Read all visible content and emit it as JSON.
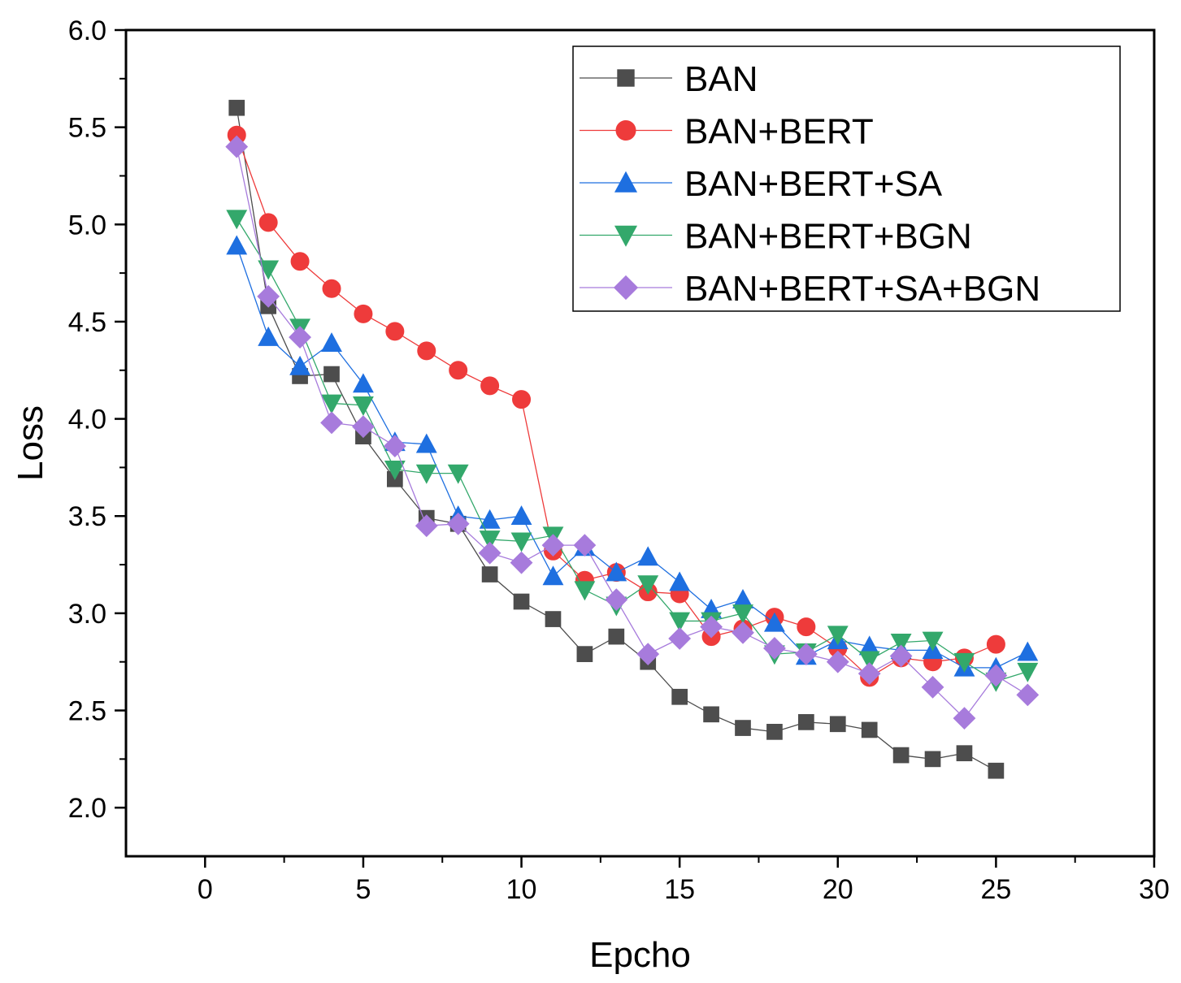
{
  "chart_data": {
    "type": "line",
    "title": "",
    "xlabel": "Epcho",
    "ylabel": "Loss",
    "xlim": [
      -2.5,
      30
    ],
    "ylim": [
      1.75,
      6.0
    ],
    "xticks": [
      0,
      5,
      10,
      15,
      20,
      25,
      30
    ],
    "xtick_labels": [
      "0",
      "5",
      "10",
      "15",
      "20",
      "25",
      "30"
    ],
    "yticks": [
      2.0,
      2.5,
      3.0,
      3.5,
      4.0,
      4.5,
      5.0,
      5.5,
      6.0
    ],
    "ytick_labels": [
      "2.0",
      "2.5",
      "3.0",
      "3.5",
      "4.0",
      "4.5",
      "5.0",
      "5.5",
      "6.0"
    ],
    "legend_position": "top-right",
    "series": [
      {
        "name": "BAN",
        "color": "#4d4d4d",
        "marker": "square",
        "x": [
          1,
          2,
          3,
          4,
          5,
          6,
          7,
          8,
          9,
          10,
          11,
          12,
          13,
          14,
          15,
          16,
          17,
          18,
          19,
          20,
          21,
          22,
          23,
          24,
          25
        ],
        "values": [
          5.6,
          4.58,
          4.22,
          4.23,
          3.91,
          3.69,
          3.49,
          3.46,
          3.2,
          3.06,
          2.97,
          2.79,
          2.88,
          2.75,
          2.57,
          2.48,
          2.41,
          2.39,
          2.44,
          2.43,
          2.4,
          2.27,
          2.25,
          2.28,
          2.19
        ]
      },
      {
        "name": "BAN+BERT",
        "color": "#ee3b3b",
        "marker": "circle",
        "x": [
          1,
          2,
          3,
          4,
          5,
          6,
          7,
          8,
          9,
          10,
          11,
          12,
          13,
          14,
          15,
          16,
          17,
          18,
          19,
          20,
          21,
          22,
          23,
          24,
          25
        ],
        "values": [
          5.46,
          5.01,
          4.81,
          4.67,
          4.54,
          4.45,
          4.35,
          4.25,
          4.17,
          4.1,
          3.32,
          3.17,
          3.21,
          3.11,
          3.1,
          2.88,
          2.92,
          2.98,
          2.93,
          2.82,
          2.67,
          2.77,
          2.75,
          2.77,
          2.84
        ]
      },
      {
        "name": "BAN+BERT+SA",
        "color": "#1e6fe0",
        "marker": "triangle-up",
        "x": [
          1,
          2,
          3,
          4,
          5,
          6,
          7,
          8,
          9,
          10,
          11,
          12,
          13,
          14,
          15,
          16,
          17,
          18,
          19,
          20,
          21,
          22,
          23,
          24,
          25,
          26
        ],
        "values": [
          4.89,
          4.42,
          4.27,
          4.39,
          4.18,
          3.88,
          3.87,
          3.5,
          3.48,
          3.5,
          3.19,
          3.34,
          3.21,
          3.29,
          3.16,
          3.02,
          3.07,
          2.95,
          2.78,
          2.86,
          2.83,
          2.81,
          2.81,
          2.72,
          2.72,
          2.8
        ]
      },
      {
        "name": "BAN+BERT+BGN",
        "color": "#33a86b",
        "marker": "triangle-down",
        "x": [
          1,
          2,
          3,
          4,
          5,
          6,
          7,
          8,
          9,
          10,
          11,
          12,
          13,
          14,
          15,
          16,
          17,
          18,
          19,
          20,
          21,
          22,
          23,
          24,
          25,
          26
        ],
        "values": [
          5.03,
          4.77,
          4.47,
          4.08,
          4.07,
          3.74,
          3.72,
          3.72,
          3.38,
          3.37,
          3.4,
          3.12,
          3.04,
          3.15,
          2.96,
          2.96,
          3.0,
          2.79,
          2.8,
          2.89,
          2.76,
          2.85,
          2.86,
          2.75,
          2.65,
          2.7
        ]
      },
      {
        "name": "BAN+BERT+SA+BGN",
        "color": "#a77bdc",
        "marker": "diamond",
        "x": [
          1,
          2,
          3,
          4,
          5,
          6,
          7,
          8,
          9,
          10,
          11,
          12,
          13,
          14,
          15,
          16,
          17,
          18,
          19,
          20,
          21,
          22,
          23,
          24,
          25,
          26
        ],
        "values": [
          5.4,
          4.63,
          4.42,
          3.98,
          3.96,
          3.86,
          3.45,
          3.46,
          3.31,
          3.26,
          3.35,
          3.35,
          3.07,
          2.79,
          2.87,
          2.93,
          2.9,
          2.82,
          2.79,
          2.75,
          2.69,
          2.78,
          2.62,
          2.46,
          2.68,
          2.58
        ]
      }
    ]
  }
}
